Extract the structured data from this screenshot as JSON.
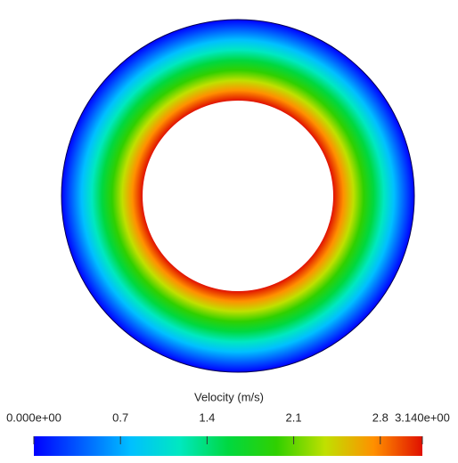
{
  "chart_data": {
    "type": "field",
    "title": "Velocity (m/s)",
    "clim": [
      0,
      3.14
    ],
    "ticks": [
      {
        "value": 0,
        "label": "0.000e+00"
      },
      0.7,
      1.4,
      2.1,
      2.8,
      {
        "value": 3.14,
        "label": "3.140e+00"
      }
    ],
    "colormap": [
      "#0000ff",
      "#0060ff",
      "#00c0ff",
      "#00e8c0",
      "#00d840",
      "#30d000",
      "#c0e000",
      "#ff9000",
      "#e01000"
    ]
  }
}
